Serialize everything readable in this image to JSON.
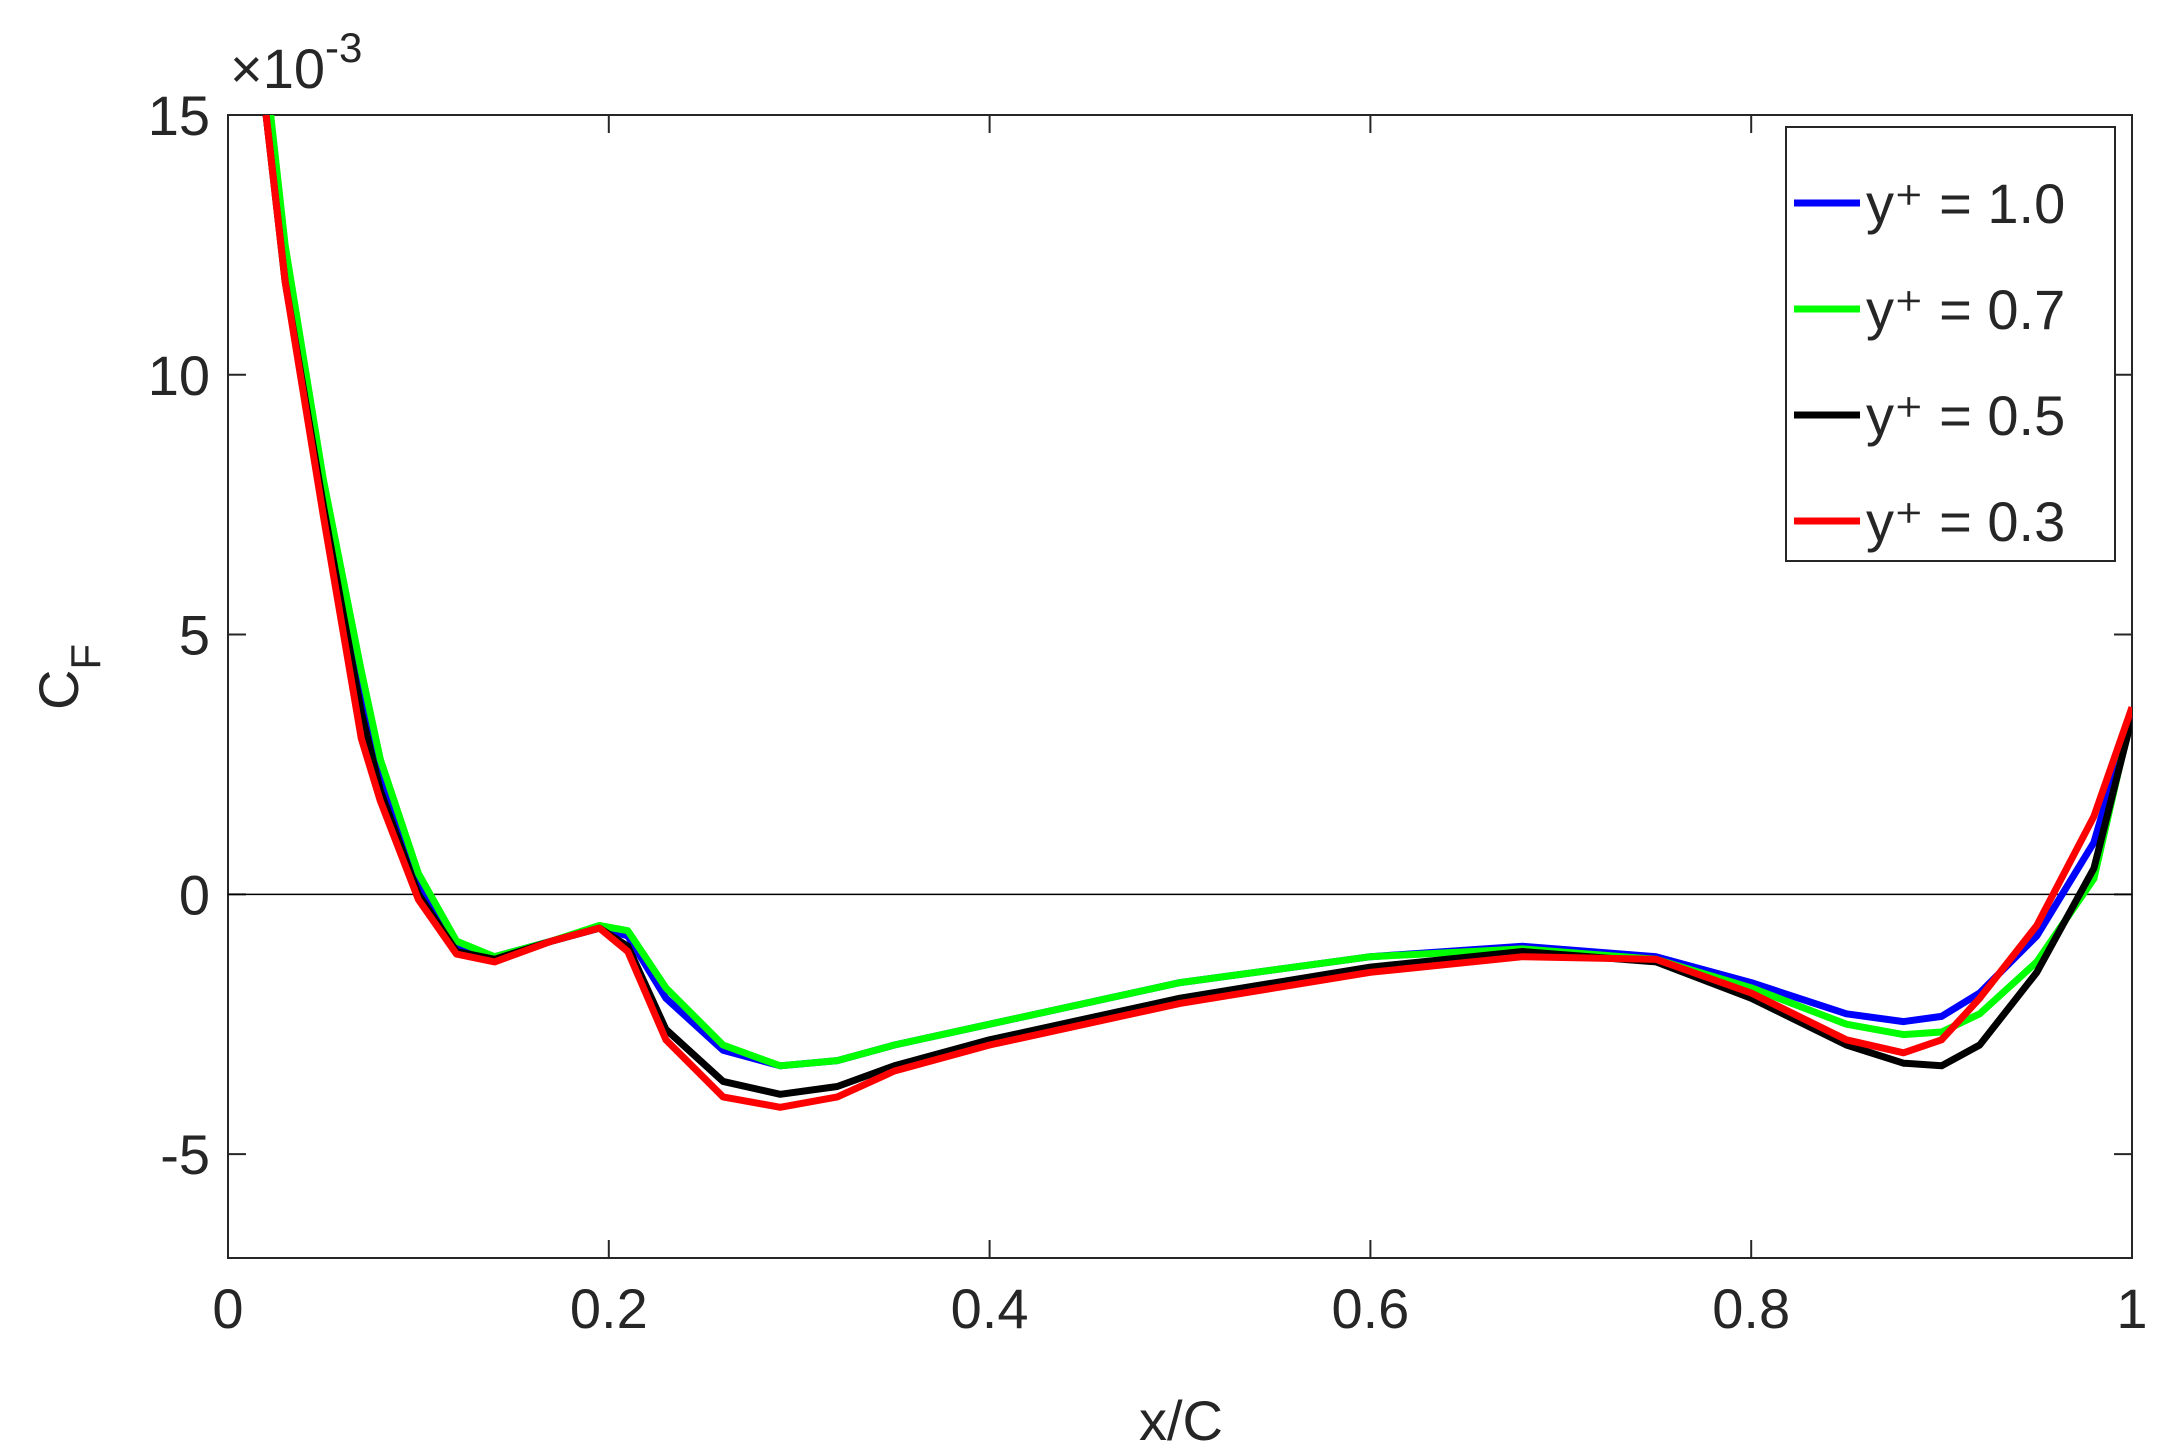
{
  "chart_data": {
    "type": "line",
    "x_label": "x/C",
    "y_label": {
      "main": "C",
      "sub": "F"
    },
    "y_multiplier": {
      "base": "×10",
      "exponent": "-3"
    },
    "x": [
      0.02,
      0.03,
      0.05,
      0.07,
      0.08,
      0.1,
      0.12,
      0.14,
      0.17,
      0.195,
      0.21,
      0.23,
      0.26,
      0.29,
      0.32,
      0.35,
      0.4,
      0.5,
      0.6,
      0.68,
      0.75,
      0.8,
      0.85,
      0.88,
      0.9,
      0.92,
      0.95,
      0.98,
      1.0
    ],
    "series": [
      {
        "name": "y⁺ = 1.0",
        "color": "#0000ff",
        "values": [
          15,
          12.0,
          7.6,
          4.0,
          2.3,
          0.2,
          -1.0,
          -1.2,
          -0.9,
          -0.65,
          -0.8,
          -2.0,
          -3.0,
          -3.3,
          -3.2,
          -2.9,
          -2.5,
          -1.7,
          -1.2,
          -1.0,
          -1.2,
          -1.7,
          -2.3,
          -2.45,
          -2.35,
          -1.9,
          -0.8,
          1.0,
          3.5
        ]
      },
      {
        "name": "y⁺ = 0.7",
        "color": "#00ff00",
        "values": [
          15.8,
          12.5,
          8.0,
          4.3,
          2.6,
          0.4,
          -0.9,
          -1.2,
          -0.9,
          -0.6,
          -0.7,
          -1.8,
          -2.9,
          -3.3,
          -3.2,
          -2.9,
          -2.5,
          -1.7,
          -1.2,
          -1.05,
          -1.25,
          -1.8,
          -2.5,
          -2.7,
          -2.65,
          -2.3,
          -1.3,
          0.3,
          3.5
        ]
      },
      {
        "name": "y⁺ = 0.5",
        "color": "#000000",
        "values": [
          15,
          11.8,
          7.5,
          3.5,
          2.0,
          0.0,
          -1.1,
          -1.25,
          -0.9,
          -0.65,
          -1.0,
          -2.6,
          -3.6,
          -3.85,
          -3.7,
          -3.3,
          -2.8,
          -2.0,
          -1.4,
          -1.1,
          -1.3,
          -2.0,
          -2.9,
          -3.25,
          -3.3,
          -2.9,
          -1.5,
          0.5,
          3.4
        ]
      },
      {
        "name": "y⁺ = 0.3",
        "color": "#ff0000",
        "values": [
          15,
          11.8,
          7.3,
          3.0,
          1.8,
          -0.1,
          -1.15,
          -1.3,
          -0.9,
          -0.65,
          -1.1,
          -2.8,
          -3.9,
          -4.1,
          -3.9,
          -3.4,
          -2.9,
          -2.1,
          -1.5,
          -1.2,
          -1.25,
          -1.9,
          -2.8,
          -3.05,
          -2.8,
          -2.0,
          -0.6,
          1.5,
          3.6
        ]
      }
    ],
    "xlim": [
      0,
      1
    ],
    "xticks": [
      0,
      0.2,
      0.4,
      0.6,
      0.8,
      1
    ],
    "ylim": [
      -7,
      15
    ],
    "yticks": [
      -5,
      0,
      5,
      10,
      15
    ],
    "zero_line": true,
    "legend": "top-right"
  }
}
